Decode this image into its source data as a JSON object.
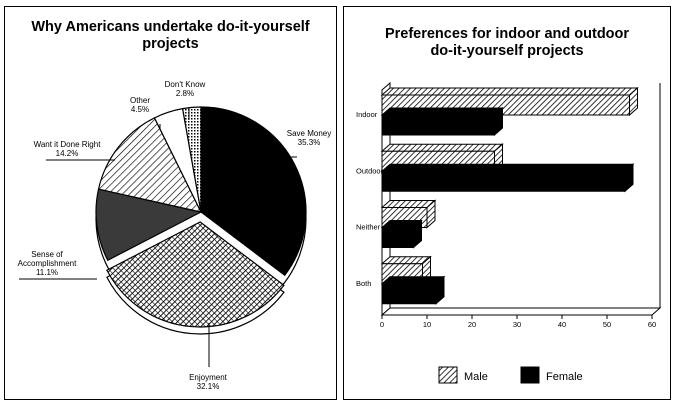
{
  "chart_data": [
    {
      "type": "pie",
      "title_line1": "Why Americans undertake do-it-yourself",
      "title_line2": "projects",
      "slices": [
        {
          "label": "Save Money",
          "value": 35.3,
          "value_label": "35.3%",
          "fill": "black",
          "exploded": false
        },
        {
          "label": "Enjoyment",
          "value": 32.1,
          "value_label": "32.1%",
          "fill": "crosshatch",
          "exploded": true
        },
        {
          "label": "Sense of Accomplishment",
          "label_lines": [
            "Sense of",
            "Accomplishment"
          ],
          "value": 11.1,
          "value_label": "11.1%",
          "fill": "dark-gray",
          "exploded": false
        },
        {
          "label": "Want it Done Right",
          "value": 14.2,
          "value_label": "14.2%",
          "fill": "diagonal-hatch",
          "exploded": false
        },
        {
          "label": "Other",
          "value": 4.5,
          "value_label": "4.5%",
          "fill": "white",
          "exploded": false
        },
        {
          "label": "Don't Know",
          "value": 2.8,
          "value_label": "2.8%",
          "fill": "dotted",
          "exploded": false
        }
      ]
    },
    {
      "type": "bar",
      "orientation": "horizontal",
      "title_line1": "Preferences for indoor and outdoor",
      "title_line2": "do-it-yourself projects",
      "categories": [
        "Indoor",
        "Outdoor",
        "Neither",
        "Both"
      ],
      "series": [
        {
          "name": "Male",
          "values": [
            55,
            25,
            10,
            9
          ],
          "fill": "hatched"
        },
        {
          "name": "Female",
          "values": [
            25,
            54,
            7,
            12
          ],
          "fill": "black"
        }
      ],
      "xlim": [
        0,
        60
      ],
      "xticks": [
        0,
        10,
        20,
        30,
        40,
        50,
        60
      ],
      "legend": "bottom",
      "grid": false
    }
  ]
}
